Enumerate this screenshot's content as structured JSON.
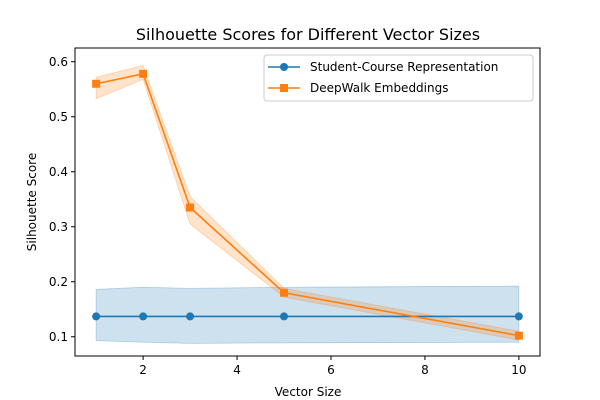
{
  "chart_data": {
    "type": "line",
    "title": "Silhouette Scores for Different Vector Sizes",
    "xlabel": "Vector Size",
    "ylabel": "Silhouette Score",
    "xlim": [
      0.55,
      10.45
    ],
    "ylim": [
      0.065,
      0.625
    ],
    "xticks": [
      2,
      4,
      6,
      8,
      10
    ],
    "yticks": [
      0.1,
      0.2,
      0.3,
      0.4,
      0.5,
      0.6
    ],
    "grid": false,
    "legend_position": "top-right",
    "series": [
      {
        "name": "Student-Course Representation",
        "color": "#1f77b4",
        "marker": "circle",
        "x": [
          1,
          2,
          3,
          5,
          10
        ],
        "y": [
          0.137,
          0.137,
          0.137,
          0.137,
          0.137
        ],
        "band_lower": [
          0.093,
          0.09,
          0.088,
          0.089,
          0.09
        ],
        "band_upper": [
          0.186,
          0.19,
          0.188,
          0.19,
          0.192
        ]
      },
      {
        "name": "DeepWalk Embeddings",
        "color": "#ff7f0e",
        "marker": "square",
        "x": [
          1,
          2,
          3,
          5,
          10
        ],
        "y": [
          0.56,
          0.578,
          0.335,
          0.18,
          0.102
        ],
        "band_lower": [
          0.533,
          0.568,
          0.305,
          0.172,
          0.094
        ],
        "band_upper": [
          0.572,
          0.593,
          0.355,
          0.188,
          0.11
        ]
      }
    ]
  }
}
